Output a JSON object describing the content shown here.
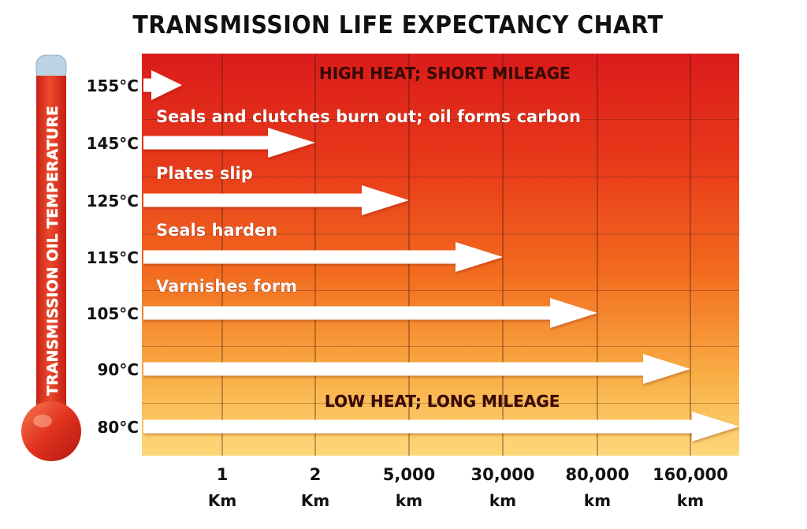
{
  "chart_data": {
    "type": "bar",
    "orientation": "horizontal",
    "title": "TRANSMISSION LIFE EXPECTANCY CHART",
    "ylabel": "TRANSMISSION OIL TEMPERATURE",
    "xlabel": "",
    "x_ticks": [
      {
        "value": "1",
        "unit": "Km"
      },
      {
        "value": "2",
        "unit": "Km"
      },
      {
        "value": "5,000",
        "unit": "km"
      },
      {
        "value": "30,000",
        "unit": "km"
      },
      {
        "value": "80,000",
        "unit": "km"
      },
      {
        "value": "160,000",
        "unit": "km"
      }
    ],
    "series": [
      {
        "category": "155°C",
        "life_expectancy_km": 0.5
      },
      {
        "category": "145°C",
        "life_expectancy_km": 2
      },
      {
        "category": "125°C",
        "life_expectancy_km": 5000
      },
      {
        "category": "115°C",
        "life_expectancy_km": 30000
      },
      {
        "category": "105°C",
        "life_expectancy_km": 80000
      },
      {
        "category": "90°C",
        "life_expectancy_km": 160000
      },
      {
        "category": "80°C",
        "life_expectancy_km": 320000
      }
    ],
    "annotations": [
      {
        "text": "HIGH HEAT; SHORT MILEAGE",
        "after_row": "155°C",
        "style": "header"
      },
      {
        "text": "Seals and clutches burn out; oil forms carbon",
        "after_row": "155°C",
        "style": "note"
      },
      {
        "text": "Plates slip",
        "after_row": "145°C",
        "style": "note"
      },
      {
        "text": "Seals harden",
        "after_row": "125°C",
        "style": "note"
      },
      {
        "text": "Varnishes form",
        "after_row": "115°C",
        "style": "note"
      },
      {
        "text": "LOW HEAT; LONG MILEAGE",
        "after_row": "90°C",
        "style": "header"
      }
    ],
    "grid": true,
    "background_gradient": {
      "top": "#dd1e1b",
      "middle": "#f0611c",
      "bottom": "#fbd97a"
    }
  }
}
